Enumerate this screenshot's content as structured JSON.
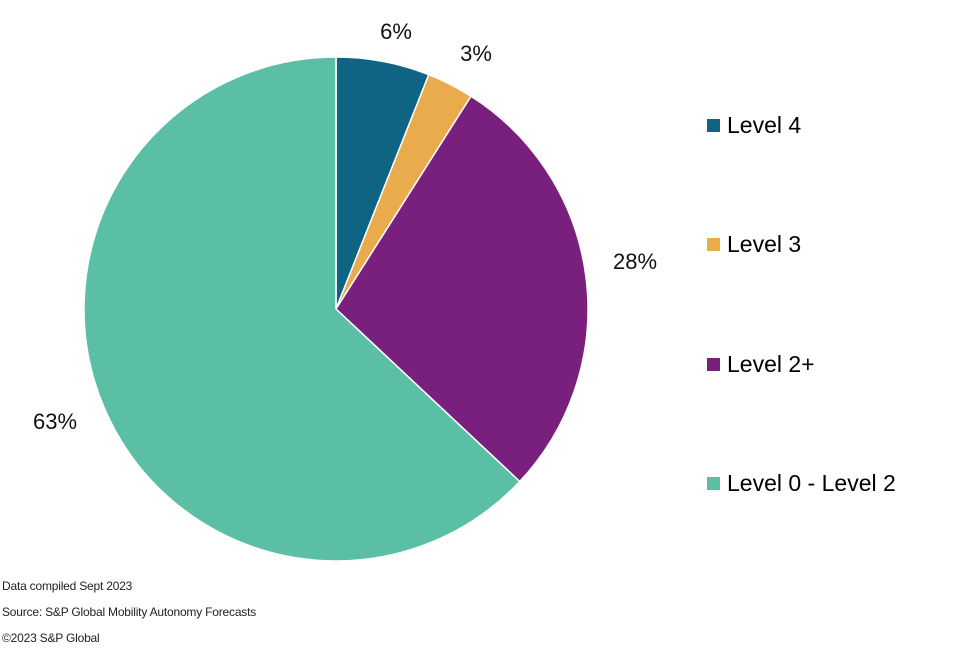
{
  "chart_data": {
    "type": "pie",
    "slices": [
      {
        "label": "Level 4",
        "value": 6,
        "display": "6%",
        "color": "#0e6482"
      },
      {
        "label": "Level 3",
        "value": 3,
        "display": "3%",
        "color": "#e9ab4c"
      },
      {
        "label": "Level 2+",
        "value": 28,
        "display": "28%",
        "color": "#791f7d"
      },
      {
        "label": "Level 0 - Level 2",
        "value": 63,
        "display": "63%",
        "color": "#5bbfa5"
      }
    ],
    "legend_placement": "right"
  },
  "footer": {
    "line1": "Data compiled Sept 2023",
    "line2": "Source: S&P Global Mobility Autonomy Forecasts",
    "line3": "©2023 S&P Global"
  }
}
